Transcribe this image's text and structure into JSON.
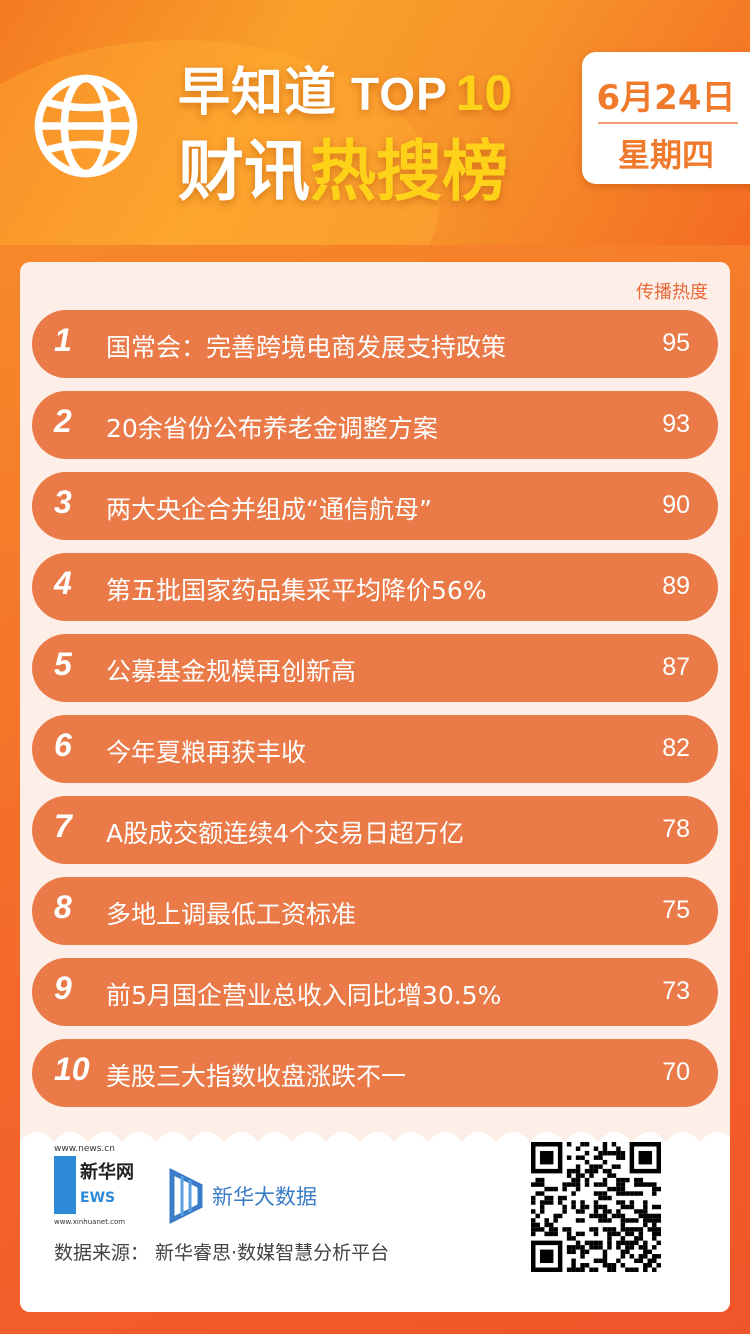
{
  "header": {
    "title_line1": "早知道",
    "title_top": "TOP",
    "title_ten": "10",
    "title_line2_a": "财讯",
    "title_line2_b": "热搜榜",
    "date": "6月24日",
    "weekday": "星期四"
  },
  "list": {
    "column_label": "传播热度",
    "items": [
      {
        "rank": "1",
        "title": "国常会：完善跨境电商发展支持政策",
        "score": "95"
      },
      {
        "rank": "2",
        "title": "20余省份公布养老金调整方案",
        "score": "93"
      },
      {
        "rank": "3",
        "title": "两大央企合并组成“通信航母”",
        "score": "90"
      },
      {
        "rank": "4",
        "title": "第五批国家药品集采平均降价56%",
        "score": "89"
      },
      {
        "rank": "5",
        "title": "公募基金规模再创新高",
        "score": "87"
      },
      {
        "rank": "6",
        "title": "今年夏粮再获丰收",
        "score": "82"
      },
      {
        "rank": "7",
        "title": "A股成交额连续4个交易日超万亿",
        "score": "78"
      },
      {
        "rank": "8",
        "title": "多地上调最低工资标准",
        "score": "75"
      },
      {
        "rank": "9",
        "title": "前5月国企营业总收入同比增30.5%",
        "score": "73"
      },
      {
        "rank": "10",
        "title": "美股三大指数收盘涨跌不一",
        "score": "70"
      }
    ]
  },
  "footer": {
    "logo1_url_top": "www.news.cn",
    "logo1_name": "新华网",
    "logo1_url_bottom": "www.xinhuanet.com",
    "logo2_name": "新华大数据",
    "source": "数据来源：  新华睿思·数媒智慧分析平台"
  },
  "colors": {
    "accent": "#f07a2c",
    "row": "#ea7a48",
    "highlight": "#ffd21a"
  }
}
